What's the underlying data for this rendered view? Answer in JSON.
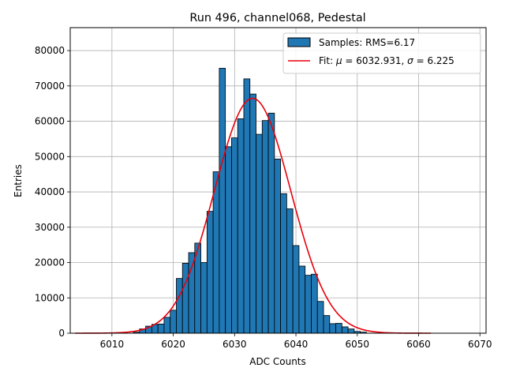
{
  "chart_data": {
    "type": "bar",
    "title": "Run 496, channel068, Pedestal",
    "xlabel": "ADC Counts",
    "ylabel": "Entries",
    "xlim": [
      6003.2,
      6071.0
    ],
    "ylim": [
      0,
      86500
    ],
    "x_ticks": [
      6010,
      6020,
      6030,
      6040,
      6050,
      6060,
      6070
    ],
    "y_ticks": [
      0,
      10000,
      20000,
      30000,
      40000,
      50000,
      60000,
      70000,
      80000
    ],
    "grid": true,
    "bin_width": 1,
    "bins": [
      {
        "x": 6014,
        "y": 300
      },
      {
        "x": 6015,
        "y": 1200
      },
      {
        "x": 6016,
        "y": 2000
      },
      {
        "x": 6017,
        "y": 2500
      },
      {
        "x": 6018,
        "y": 2600
      },
      {
        "x": 6019,
        "y": 4500
      },
      {
        "x": 6020,
        "y": 6500
      },
      {
        "x": 6021,
        "y": 15500
      },
      {
        "x": 6022,
        "y": 19800
      },
      {
        "x": 6023,
        "y": 22800
      },
      {
        "x": 6024,
        "y": 25500
      },
      {
        "x": 6025,
        "y": 20000
      },
      {
        "x": 6026,
        "y": 34500
      },
      {
        "x": 6027,
        "y": 45700
      },
      {
        "x": 6028,
        "y": 75000
      },
      {
        "x": 6029,
        "y": 52800
      },
      {
        "x": 6030,
        "y": 55300
      },
      {
        "x": 6031,
        "y": 60700
      },
      {
        "x": 6032,
        "y": 72000
      },
      {
        "x": 6033,
        "y": 67700
      },
      {
        "x": 6034,
        "y": 56300
      },
      {
        "x": 6035,
        "y": 60200
      },
      {
        "x": 6036,
        "y": 62300
      },
      {
        "x": 6037,
        "y": 49300
      },
      {
        "x": 6038,
        "y": 39500
      },
      {
        "x": 6039,
        "y": 35200
      },
      {
        "x": 6040,
        "y": 24800
      },
      {
        "x": 6041,
        "y": 19000
      },
      {
        "x": 6042,
        "y": 16400
      },
      {
        "x": 6043,
        "y": 16700
      },
      {
        "x": 6044,
        "y": 9000
      },
      {
        "x": 6045,
        "y": 5000
      },
      {
        "x": 6046,
        "y": 2700
      },
      {
        "x": 6047,
        "y": 2800
      },
      {
        "x": 6048,
        "y": 1800
      },
      {
        "x": 6049,
        "y": 1200
      },
      {
        "x": 6050,
        "y": 500
      },
      {
        "x": 6051,
        "y": 300
      }
    ],
    "fit": {
      "label_prefix": "Fit: ",
      "mu_symbol": "μ",
      "sigma_symbol": "σ",
      "mu": 6032.931,
      "sigma": 6.225,
      "amplitude": 66500,
      "x_range": [
        6004,
        6062
      ],
      "color": "#e8000b"
    },
    "legend": {
      "position": "top-right",
      "samples_label": "Samples: RMS=6.17",
      "fit_label": "Fit: μ = 6032.931, σ = 6.225"
    },
    "colors": {
      "bar_fill": "#1f77b4",
      "bar_edge": "#000000",
      "grid": "#b0b0b0"
    }
  }
}
